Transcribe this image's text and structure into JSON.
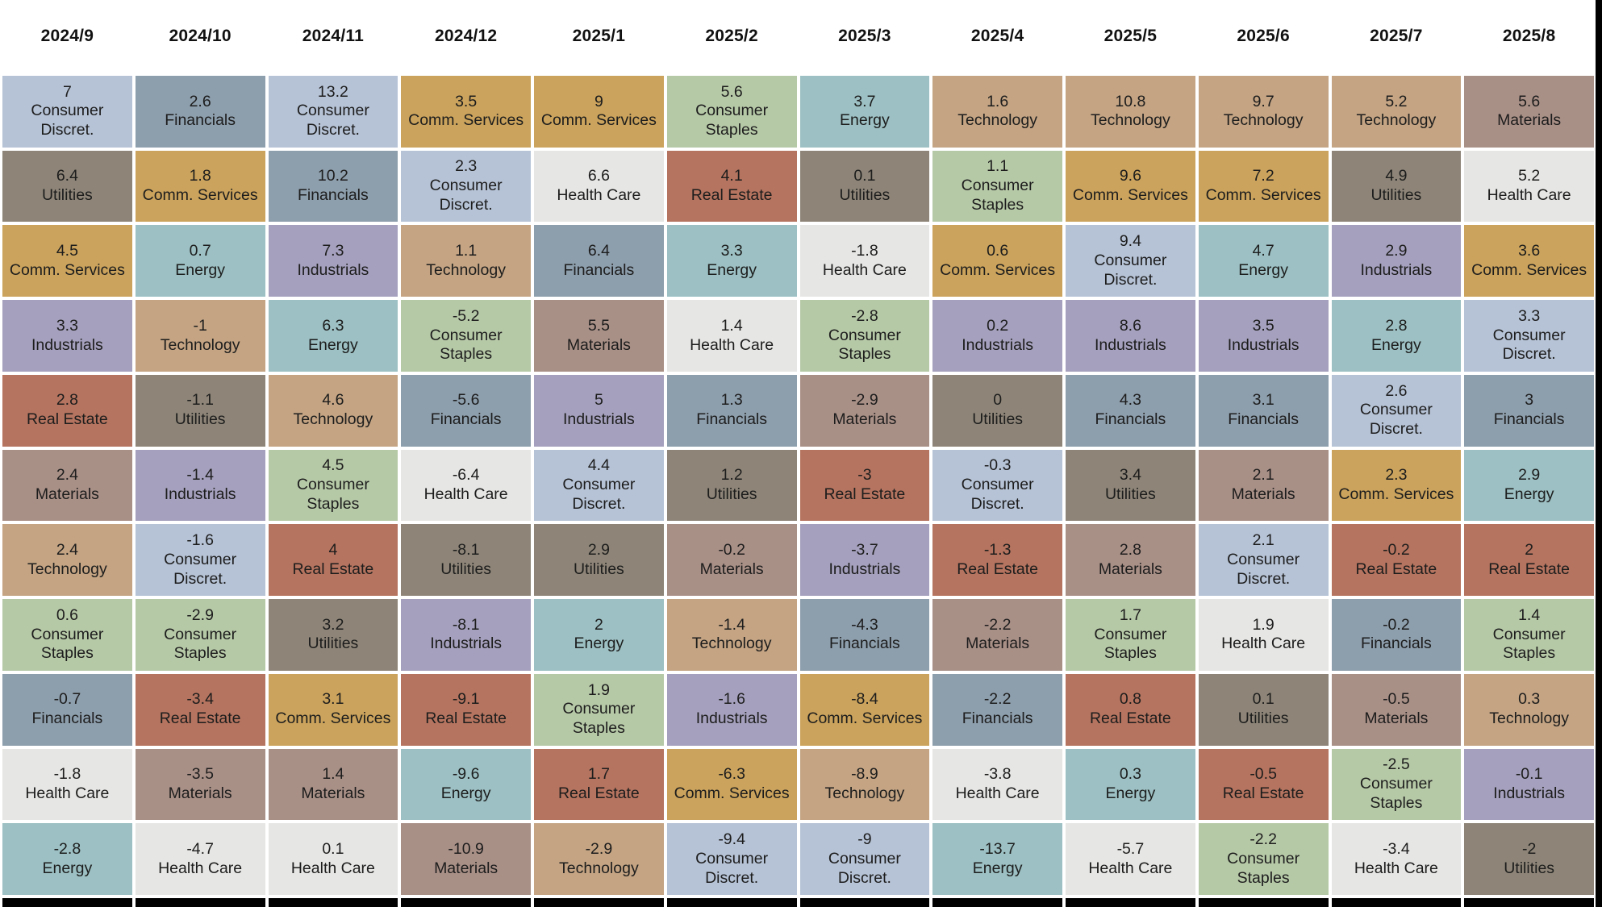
{
  "chart_data": {
    "type": "heatmap",
    "description_of_visual": "Monthly sector performance quilt: 12 month columns, each column lists 11 sectors ranked by return, cell color coded by sector",
    "background_color": "#ffffff",
    "text_color": "#1d1d1d",
    "edge_bar_color": "#000000",
    "sector_colors": {
      "Consumer Discret.": "#b6c3d6",
      "Financials": "#8d9eac",
      "Utilities": "#8e8578",
      "Comm. Services": "#cba35c",
      "Industrials": "#a5a0bd",
      "Real Estate": "#b5745f",
      "Materials": "#a99087",
      "Technology": "#c4a483",
      "Consumer Staples": "#b6c9a7",
      "Health Care": "#e6e6e4",
      "Energy": "#9cc0c3"
    },
    "columns": [
      {
        "label": "2024/9",
        "cells": [
          {
            "value": "7",
            "sector": "Consumer Discret."
          },
          {
            "value": "6.4",
            "sector": "Utilities"
          },
          {
            "value": "4.5",
            "sector": "Comm. Services"
          },
          {
            "value": "3.3",
            "sector": "Industrials"
          },
          {
            "value": "2.8",
            "sector": "Real Estate"
          },
          {
            "value": "2.4",
            "sector": "Materials"
          },
          {
            "value": "2.4",
            "sector": "Technology"
          },
          {
            "value": "0.6",
            "sector": "Consumer Staples"
          },
          {
            "value": "-0.7",
            "sector": "Financials"
          },
          {
            "value": "-1.8",
            "sector": "Health Care"
          },
          {
            "value": "-2.8",
            "sector": "Energy"
          }
        ]
      },
      {
        "label": "2024/10",
        "cells": [
          {
            "value": "2.6",
            "sector": "Financials"
          },
          {
            "value": "1.8",
            "sector": "Comm. Services"
          },
          {
            "value": "0.7",
            "sector": "Energy"
          },
          {
            "value": "-1",
            "sector": "Technology"
          },
          {
            "value": "-1.1",
            "sector": "Utilities"
          },
          {
            "value": "-1.4",
            "sector": "Industrials"
          },
          {
            "value": "-1.6",
            "sector": "Consumer Discret."
          },
          {
            "value": "-2.9",
            "sector": "Consumer Staples"
          },
          {
            "value": "-3.4",
            "sector": "Real Estate"
          },
          {
            "value": "-3.5",
            "sector": "Materials"
          },
          {
            "value": "-4.7",
            "sector": "Health Care"
          }
        ]
      },
      {
        "label": "2024/11",
        "cells": [
          {
            "value": "13.2",
            "sector": "Consumer Discret."
          },
          {
            "value": "10.2",
            "sector": "Financials"
          },
          {
            "value": "7.3",
            "sector": "Industrials"
          },
          {
            "value": "6.3",
            "sector": "Energy"
          },
          {
            "value": "4.6",
            "sector": "Technology"
          },
          {
            "value": "4.5",
            "sector": "Consumer Staples"
          },
          {
            "value": "4",
            "sector": "Real Estate"
          },
          {
            "value": "3.2",
            "sector": "Utilities"
          },
          {
            "value": "3.1",
            "sector": "Comm. Services"
          },
          {
            "value": "1.4",
            "sector": "Materials"
          },
          {
            "value": "0.1",
            "sector": "Health Care"
          }
        ]
      },
      {
        "label": "2024/12",
        "cells": [
          {
            "value": "3.5",
            "sector": "Comm. Services"
          },
          {
            "value": "2.3",
            "sector": "Consumer Discret."
          },
          {
            "value": "1.1",
            "sector": "Technology"
          },
          {
            "value": "-5.2",
            "sector": "Consumer Staples"
          },
          {
            "value": "-5.6",
            "sector": "Financials"
          },
          {
            "value": "-6.4",
            "sector": "Health Care"
          },
          {
            "value": "-8.1",
            "sector": "Utilities"
          },
          {
            "value": "-8.1",
            "sector": "Industrials"
          },
          {
            "value": "-9.1",
            "sector": "Real Estate"
          },
          {
            "value": "-9.6",
            "sector": "Energy"
          },
          {
            "value": "-10.9",
            "sector": "Materials"
          }
        ]
      },
      {
        "label": "2025/1",
        "cells": [
          {
            "value": "9",
            "sector": "Comm. Services"
          },
          {
            "value": "6.6",
            "sector": "Health Care"
          },
          {
            "value": "6.4",
            "sector": "Financials"
          },
          {
            "value": "5.5",
            "sector": "Materials"
          },
          {
            "value": "5",
            "sector": "Industrials"
          },
          {
            "value": "4.4",
            "sector": "Consumer Discret."
          },
          {
            "value": "2.9",
            "sector": "Utilities"
          },
          {
            "value": "2",
            "sector": "Energy"
          },
          {
            "value": "1.9",
            "sector": "Consumer Staples"
          },
          {
            "value": "1.7",
            "sector": "Real Estate"
          },
          {
            "value": "-2.9",
            "sector": "Technology"
          }
        ]
      },
      {
        "label": "2025/2",
        "cells": [
          {
            "value": "5.6",
            "sector": "Consumer Staples"
          },
          {
            "value": "4.1",
            "sector": "Real Estate"
          },
          {
            "value": "3.3",
            "sector": "Energy"
          },
          {
            "value": "1.4",
            "sector": "Health Care"
          },
          {
            "value": "1.3",
            "sector": "Financials"
          },
          {
            "value": "1.2",
            "sector": "Utilities"
          },
          {
            "value": "-0.2",
            "sector": "Materials"
          },
          {
            "value": "-1.4",
            "sector": "Technology"
          },
          {
            "value": "-1.6",
            "sector": "Industrials"
          },
          {
            "value": "-6.3",
            "sector": "Comm. Services"
          },
          {
            "value": "-9.4",
            "sector": "Consumer Discret."
          }
        ]
      },
      {
        "label": "2025/3",
        "cells": [
          {
            "value": "3.7",
            "sector": "Energy"
          },
          {
            "value": "0.1",
            "sector": "Utilities"
          },
          {
            "value": "-1.8",
            "sector": "Health Care"
          },
          {
            "value": "-2.8",
            "sector": "Consumer Staples"
          },
          {
            "value": "-2.9",
            "sector": "Materials"
          },
          {
            "value": "-3",
            "sector": "Real Estate"
          },
          {
            "value": "-3.7",
            "sector": "Industrials"
          },
          {
            "value": "-4.3",
            "sector": "Financials"
          },
          {
            "value": "-8.4",
            "sector": "Comm. Services"
          },
          {
            "value": "-8.9",
            "sector": "Technology"
          },
          {
            "value": "-9",
            "sector": "Consumer Discret."
          }
        ]
      },
      {
        "label": "2025/4",
        "cells": [
          {
            "value": "1.6",
            "sector": "Technology"
          },
          {
            "value": "1.1",
            "sector": "Consumer Staples"
          },
          {
            "value": "0.6",
            "sector": "Comm. Services"
          },
          {
            "value": "0.2",
            "sector": "Industrials"
          },
          {
            "value": "0",
            "sector": "Utilities"
          },
          {
            "value": "-0.3",
            "sector": "Consumer Discret."
          },
          {
            "value": "-1.3",
            "sector": "Real Estate"
          },
          {
            "value": "-2.2",
            "sector": "Materials"
          },
          {
            "value": "-2.2",
            "sector": "Financials"
          },
          {
            "value": "-3.8",
            "sector": "Health Care"
          },
          {
            "value": "-13.7",
            "sector": "Energy"
          }
        ]
      },
      {
        "label": "2025/5",
        "cells": [
          {
            "value": "10.8",
            "sector": "Technology"
          },
          {
            "value": "9.6",
            "sector": "Comm. Services"
          },
          {
            "value": "9.4",
            "sector": "Consumer Discret."
          },
          {
            "value": "8.6",
            "sector": "Industrials"
          },
          {
            "value": "4.3",
            "sector": "Financials"
          },
          {
            "value": "3.4",
            "sector": "Utilities"
          },
          {
            "value": "2.8",
            "sector": "Materials"
          },
          {
            "value": "1.7",
            "sector": "Consumer Staples"
          },
          {
            "value": "0.8",
            "sector": "Real Estate"
          },
          {
            "value": "0.3",
            "sector": "Energy"
          },
          {
            "value": "-5.7",
            "sector": "Health Care"
          }
        ]
      },
      {
        "label": "2025/6",
        "cells": [
          {
            "value": "9.7",
            "sector": "Technology"
          },
          {
            "value": "7.2",
            "sector": "Comm. Services"
          },
          {
            "value": "4.7",
            "sector": "Energy"
          },
          {
            "value": "3.5",
            "sector": "Industrials"
          },
          {
            "value": "3.1",
            "sector": "Financials"
          },
          {
            "value": "2.1",
            "sector": "Materials"
          },
          {
            "value": "2.1",
            "sector": "Consumer Discret."
          },
          {
            "value": "1.9",
            "sector": "Health Care"
          },
          {
            "value": "0.1",
            "sector": "Utilities"
          },
          {
            "value": "-0.5",
            "sector": "Real Estate"
          },
          {
            "value": "-2.2",
            "sector": "Consumer Staples"
          }
        ]
      },
      {
        "label": "2025/7",
        "cells": [
          {
            "value": "5.2",
            "sector": "Technology"
          },
          {
            "value": "4.9",
            "sector": "Utilities"
          },
          {
            "value": "2.9",
            "sector": "Industrials"
          },
          {
            "value": "2.8",
            "sector": "Energy"
          },
          {
            "value": "2.6",
            "sector": "Consumer Discret."
          },
          {
            "value": "2.3",
            "sector": "Comm. Services"
          },
          {
            "value": "-0.2",
            "sector": "Real Estate"
          },
          {
            "value": "-0.2",
            "sector": "Financials"
          },
          {
            "value": "-0.5",
            "sector": "Materials"
          },
          {
            "value": "-2.5",
            "sector": "Consumer Staples"
          },
          {
            "value": "-3.4",
            "sector": "Health Care"
          }
        ]
      },
      {
        "label": "2025/8",
        "cells": [
          {
            "value": "5.6",
            "sector": "Materials"
          },
          {
            "value": "5.2",
            "sector": "Health Care"
          },
          {
            "value": "3.6",
            "sector": "Comm. Services"
          },
          {
            "value": "3.3",
            "sector": "Consumer Discret."
          },
          {
            "value": "3",
            "sector": "Financials"
          },
          {
            "value": "2.9",
            "sector": "Energy"
          },
          {
            "value": "2",
            "sector": "Real Estate"
          },
          {
            "value": "1.4",
            "sector": "Consumer Staples"
          },
          {
            "value": "0.3",
            "sector": "Technology"
          },
          {
            "value": "-0.1",
            "sector": "Industrials"
          },
          {
            "value": "-2",
            "sector": "Utilities"
          }
        ]
      }
    ]
  }
}
